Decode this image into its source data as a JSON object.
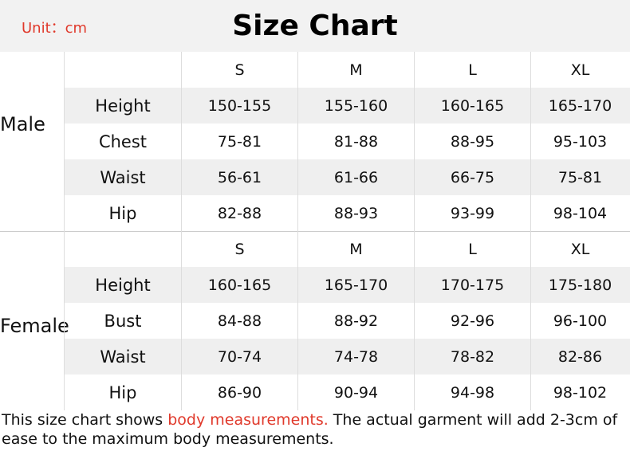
{
  "header": {
    "unit": "Unit：cm",
    "title": "Size Chart"
  },
  "sizes": [
    "S",
    "M",
    "L",
    "XL"
  ],
  "male": {
    "label": "Male",
    "rows": [
      {
        "label": "Height",
        "values": [
          "150-155",
          "155-160",
          "160-165",
          "165-170"
        ]
      },
      {
        "label": "Chest",
        "values": [
          "75-81",
          "81-88",
          "88-95",
          "95-103"
        ]
      },
      {
        "label": "Waist",
        "values": [
          "56-61",
          "61-66",
          "66-75",
          "75-81"
        ]
      },
      {
        "label": "Hip",
        "values": [
          "82-88",
          "88-93",
          "93-99",
          "98-104"
        ]
      }
    ]
  },
  "female": {
    "label": "Female",
    "rows": [
      {
        "label": "Height",
        "values": [
          "160-165",
          "165-170",
          "170-175",
          "175-180"
        ]
      },
      {
        "label": "Bust",
        "values": [
          "84-88",
          "88-92",
          "92-96",
          "96-100"
        ]
      },
      {
        "label": "Waist",
        "values": [
          "70-74",
          "74-78",
          "78-82",
          "82-86"
        ]
      },
      {
        "label": "Hip",
        "values": [
          "86-90",
          "90-94",
          "94-98",
          "98-102"
        ]
      }
    ]
  },
  "footer": {
    "prefix": "This size chart shows ",
    "highlight": "body measurements.",
    "suffix": " The actual garment will add 2-3cm of ease to the maximum body measurements."
  },
  "colors": {
    "accent": "#e0392b",
    "row_alt": "#efefef"
  }
}
